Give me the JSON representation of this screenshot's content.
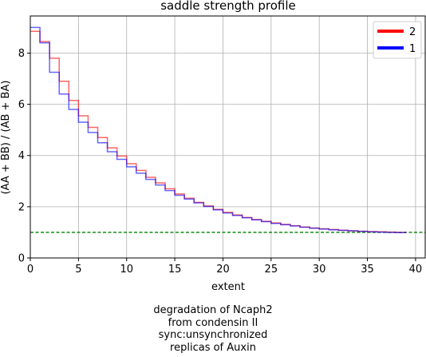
{
  "chart_data": {
    "type": "line",
    "title": "saddle strength profile",
    "xlabel": "extent",
    "ylabel": "(AA + BB) / (AB + BA)",
    "xlim": [
      0,
      41
    ],
    "ylim": [
      0,
      9.45
    ],
    "xticks": [
      0,
      5,
      10,
      15,
      20,
      25,
      30,
      35,
      40
    ],
    "yticks": [
      0,
      2,
      4,
      6,
      8
    ],
    "grid": true,
    "legend_position": "top-right",
    "step": "post",
    "x": [
      0,
      1,
      2,
      3,
      4,
      5,
      6,
      7,
      8,
      9,
      10,
      11,
      12,
      13,
      14,
      15,
      16,
      17,
      18,
      19,
      20,
      21,
      22,
      23,
      24,
      25,
      26,
      27,
      28,
      29,
      30,
      31,
      32,
      33,
      34,
      35,
      36,
      37,
      38,
      39
    ],
    "series": [
      {
        "name": "2",
        "color": "#ff0000",
        "values": [
          8.85,
          8.45,
          7.8,
          6.9,
          6.15,
          5.55,
          5.1,
          4.7,
          4.3,
          3.98,
          3.68,
          3.42,
          3.15,
          2.93,
          2.7,
          2.5,
          2.33,
          2.17,
          2.03,
          1.9,
          1.78,
          1.68,
          1.58,
          1.5,
          1.43,
          1.37,
          1.31,
          1.26,
          1.21,
          1.17,
          1.14,
          1.11,
          1.08,
          1.06,
          1.04,
          1.03,
          1.02,
          1.01,
          1.0,
          0.99
        ]
      },
      {
        "name": "1",
        "color": "#0000ff",
        "values": [
          9.0,
          8.4,
          7.25,
          6.4,
          5.8,
          5.3,
          4.9,
          4.5,
          4.15,
          3.85,
          3.56,
          3.31,
          3.07,
          2.85,
          2.63,
          2.45,
          2.3,
          2.15,
          2.01,
          1.88,
          1.76,
          1.66,
          1.57,
          1.49,
          1.42,
          1.35,
          1.3,
          1.25,
          1.2,
          1.16,
          1.13,
          1.1,
          1.08,
          1.06,
          1.04,
          1.02,
          1.01,
          1.0,
          0.99,
          0.98
        ]
      }
    ],
    "reference_line": {
      "y": 1,
      "color": "#008000",
      "style": "dashed"
    }
  },
  "caption": {
    "lines": [
      "degradation of Ncaph2",
      "from condensin II",
      "sync:unsynchronized",
      "replicas of Auxin"
    ]
  }
}
